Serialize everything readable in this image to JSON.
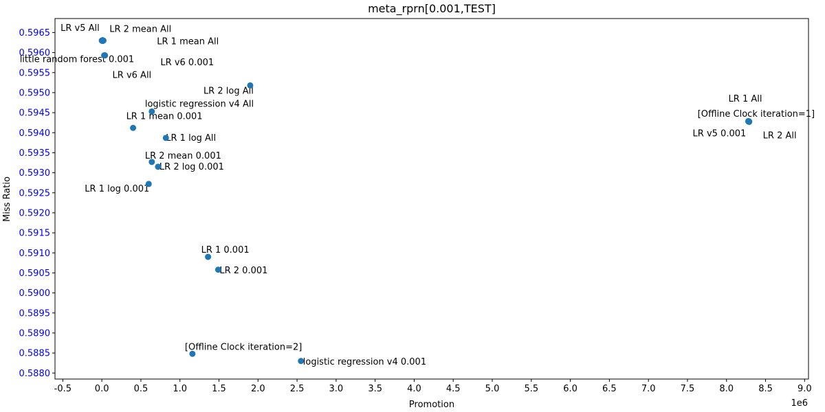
{
  "chart_data": {
    "type": "scatter",
    "title": "meta_rprn[0.001,TEST]",
    "xlabel": "Promotion",
    "ylabel": "Miss Ratio",
    "x_offset_label": "1e6",
    "xlim": [
      -0.6,
      9.05
    ],
    "ylim": [
      0.58785,
      0.59685
    ],
    "x_ticks": [
      -0.5,
      0.0,
      0.5,
      1.0,
      1.5,
      2.0,
      2.5,
      3.0,
      3.5,
      4.0,
      4.5,
      5.0,
      5.5,
      6.0,
      6.5,
      7.0,
      7.5,
      8.0,
      8.5,
      9.0
    ],
    "y_ticks": [
      0.588,
      0.5885,
      0.589,
      0.5895,
      0.59,
      0.5905,
      0.591,
      0.5915,
      0.592,
      0.5925,
      0.593,
      0.5935,
      0.594,
      0.5945,
      0.595,
      0.5955,
      0.596,
      0.5965
    ],
    "point_color": "#1f77b4",
    "ytick_color": "#0000ff",
    "points": [
      {
        "x": 0.0,
        "y": 0.5963,
        "label": "LR v5 All",
        "ldx": -60,
        "ldy": -14
      },
      {
        "x": 0.01,
        "y": 0.59629,
        "label": "LR 2 mean All",
        "ldx": 10,
        "ldy": -13
      },
      {
        "x": 0.01,
        "y": 0.59631,
        "label": "LR 1 mean All",
        "ldx": 79,
        "ldy": 6
      },
      {
        "x": 0.04,
        "y": 0.59593,
        "label": "little random forest 0.001",
        "ldx": -124,
        "ldy": 10
      },
      {
        "x": 0.02,
        "y": 0.5963,
        "label": "LR v6 0.001",
        "ldx": 83,
        "ldy": 36
      },
      {
        "x": 0.03,
        "y": 0.59593,
        "label": "LR v6 All",
        "ldx": 12,
        "ldy": 33
      },
      {
        "x": 1.9,
        "y": 0.59518,
        "label": "LR 2 log All",
        "ldx": -68,
        "ldy": 12
      },
      {
        "x": 0.64,
        "y": 0.59453,
        "label": "logistic regression v4 All",
        "ldx": -10,
        "ldy": -7
      },
      {
        "x": 0.4,
        "y": 0.59412,
        "label": "LR 1 mean 0.001",
        "ldx": -10,
        "ldy": -13
      },
      {
        "x": 0.82,
        "y": 0.59387,
        "label": "LR 1 log All",
        "ldx": 0,
        "ldy": 4
      },
      {
        "x": 0.64,
        "y": 0.59327,
        "label": "LR 2 mean 0.001",
        "ldx": -10,
        "ldy": -5
      },
      {
        "x": 0.72,
        "y": 0.59315,
        "label": "LR 2 log 0.001",
        "ldx": 2,
        "ldy": 4
      },
      {
        "x": 0.6,
        "y": 0.59272,
        "label": "LR 1 log 0.001",
        "ldx": -93,
        "ldy": 11
      },
      {
        "x": 1.36,
        "y": 0.5909,
        "label": "LR 1 0.001",
        "ldx": -10,
        "ldy": -6
      },
      {
        "x": 1.49,
        "y": 0.59058,
        "label": "LR 2 0.001",
        "ldx": 2,
        "ldy": 5
      },
      {
        "x": 1.16,
        "y": 0.58848,
        "label": "[Offline Clock iteration=2]",
        "ldx": -11,
        "ldy": -6
      },
      {
        "x": 2.55,
        "y": 0.5883,
        "label": "logistic regression v4 0.001",
        "ldx": 3,
        "ldy": 5
      },
      {
        "x": 8.28,
        "y": 0.59428,
        "label": "LR 1 All",
        "ldx": -29,
        "ldy": -29
      },
      {
        "x": 8.29,
        "y": 0.59428,
        "label": "[Offline Clock iteration=1]",
        "ldx": -75,
        "ldy": -7
      },
      {
        "x": 8.28,
        "y": 0.59429,
        "label": "LR v5 0.001",
        "ldx": -81,
        "ldy": 22
      },
      {
        "x": 8.29,
        "y": 0.59427,
        "label": "LR 2 All",
        "ldx": 20,
        "ldy": 24
      }
    ]
  }
}
